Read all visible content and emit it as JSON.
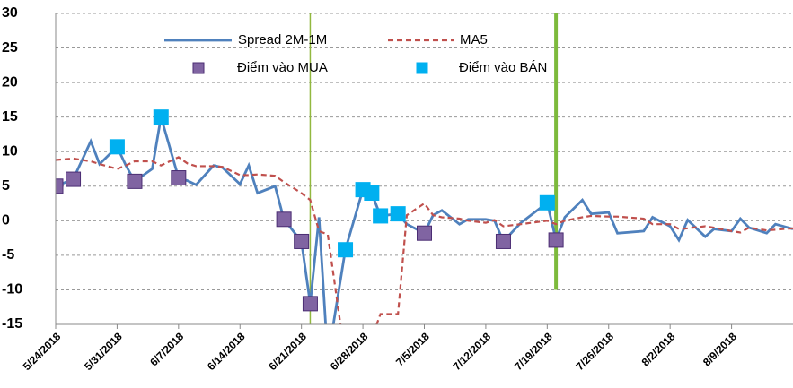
{
  "chart_data": {
    "type": "line",
    "x": [
      "5/24/2018",
      "5/26/2018",
      "5/28/2018",
      "5/29/2018",
      "5/31/2018",
      "6/1/2018",
      "6/2/2018",
      "6/4/2018",
      "6/5/2018",
      "6/7/2018",
      "6/8/2018",
      "6/9/2018",
      "6/11/2018",
      "6/12/2018",
      "6/14/2018",
      "6/15/2018",
      "6/16/2018",
      "6/18/2018",
      "6/19/2018",
      "6/21/2018",
      "6/22/2018",
      "6/23/2018",
      "6/24/2018",
      "6/26/2018",
      "6/28/2018",
      "6/29/2018",
      "6/30/2018",
      "7/2/2018",
      "7/3/2018",
      "7/5/2018",
      "7/6/2018",
      "7/7/2018",
      "7/9/2018",
      "7/10/2018",
      "7/12/2018",
      "7/13/2018",
      "7/14/2018",
      "7/16/2018",
      "7/19/2018",
      "7/20/2018",
      "7/21/2018",
      "7/23/2018",
      "7/24/2018",
      "7/26/2018",
      "7/27/2018",
      "7/30/2018",
      "7/31/2018",
      "8/2/2018",
      "8/3/2018",
      "8/4/2018",
      "8/6/2018",
      "8/7/2018",
      "8/9/2018",
      "8/10/2018",
      "8/11/2018",
      "8/13/2018",
      "8/14/2018",
      "8/16/2018"
    ],
    "series": [
      {
        "name": "Spread 2M-1M",
        "color": "#4f81bd",
        "dash": false,
        "values": [
          5,
          6,
          11.5,
          8.2,
          10.7,
          8,
          5.7,
          7.5,
          15,
          6.2,
          5.8,
          5.2,
          8,
          7.7,
          5.3,
          8,
          4,
          5,
          0.2,
          -3,
          -12,
          0.5,
          -20,
          -4.2,
          4.5,
          4,
          0.7,
          1,
          -0.5,
          -1.8,
          0.8,
          1.5,
          -0.5,
          0.2,
          0.2,
          0,
          -3,
          -0.3,
          2.6,
          -2.8,
          0.5,
          3,
          1,
          1.2,
          -1.8,
          -1.5,
          0.5,
          -0.8,
          -2.8,
          0.1,
          -2.3,
          -1.2,
          -1.5,
          0.3,
          -1,
          -1.8,
          -0.5,
          -1.2
        ]
      },
      {
        "name": "MA5",
        "color": "#c0504d",
        "dash": true,
        "values": [
          8.8,
          9,
          8.6,
          8.2,
          7.5,
          8,
          8.6,
          8.6,
          8,
          9.2,
          8.3,
          7.9,
          7.9,
          7.8,
          6.6,
          6.6,
          6.7,
          6.5,
          5.6,
          4,
          3,
          -1.5,
          -2,
          -20,
          -20,
          -17,
          -13.5,
          -13.5,
          0.8,
          2.5,
          0.8,
          0.5,
          0.3,
          0,
          -0.3,
          0.1,
          -0.8,
          -0.5,
          0,
          -0.5,
          0,
          0.5,
          0.7,
          0.6,
          0.6,
          0.3,
          -0.5,
          -0.5,
          -1.2,
          -1.1,
          -0.8,
          -1,
          -1.5,
          -1.7,
          -1,
          -1.4,
          -1.3,
          -1.1
        ]
      }
    ],
    "markers": [
      {
        "name": "Điểm vào MUA",
        "color": "#8064a2",
        "border": "#4b2d73",
        "x": [
          "5/24/2018",
          "5/26/2018",
          "6/2/2018",
          "6/7/2018",
          "6/19/2018",
          "6/21/2018",
          "6/22/2018",
          "7/5/2018",
          "7/14/2018",
          "7/20/2018"
        ],
        "values": [
          5,
          6,
          5.7,
          6.2,
          0.2,
          -3,
          -12,
          -1.8,
          -3,
          -2.8
        ]
      },
      {
        "name": "Điểm vào BÁN",
        "color": "#00b0f0",
        "border": "#00b0f0",
        "x": [
          "5/31/2018",
          "6/5/2018",
          "6/26/2018",
          "6/28/2018",
          "6/29/2018",
          "6/30/2018",
          "7/2/2018",
          "7/19/2018"
        ],
        "values": [
          10.7,
          15,
          -4.2,
          4.5,
          4,
          0.7,
          1,
          2.6
        ]
      }
    ],
    "vlines": [
      {
        "x": "6/22/2018",
        "y": [
          -15,
          30
        ],
        "color": "#92b83f",
        "width": 1.5
      },
      {
        "x": "7/20/2018",
        "y": [
          -10,
          30
        ],
        "color": "#7dba3c",
        "width": 4
      }
    ],
    "xlim": [
      "5/24/2018",
      "8/16/2018"
    ],
    "xticks": [
      "5/24/2018",
      "5/31/2018",
      "6/7/2018",
      "6/14/2018",
      "6/21/2018",
      "6/28/2018",
      "7/5/2018",
      "7/12/2018",
      "7/19/2018",
      "7/26/2018",
      "8/2/2018",
      "8/9/2018"
    ],
    "ylim": [
      -15,
      30
    ],
    "yticks": [
      -15,
      -10,
      -5,
      0,
      5,
      10,
      15,
      20,
      25,
      30
    ],
    "grid": true
  }
}
